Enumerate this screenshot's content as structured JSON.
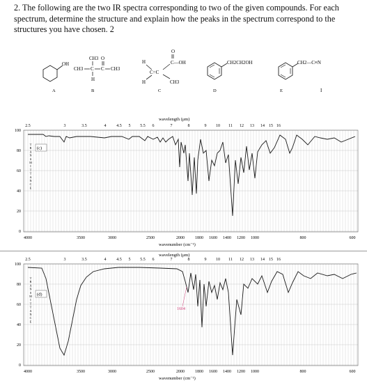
{
  "question": {
    "text": "2. The following are the two IR spectra corresponding to two of the given compounds. For each spectrum, determine the structure and explain how the peaks in the spectrum correspond to the structures you have chosen. 2"
  },
  "compounds": {
    "labels": [
      "A",
      "B",
      "C",
      "D",
      "E",
      "I"
    ],
    "A": {
      "oh": "OH"
    },
    "B": {
      "ch3_top": "CH3",
      "o_top": "O",
      "ch3_left": "CH3",
      "c_mid": "C",
      "c_right": "C",
      "ch3_right": "CH3",
      "h_bottom": "H"
    },
    "C": {
      "o_top": "O",
      "h_left_top": "H",
      "h_left_bottom": "H",
      "c_eq": "C=C",
      "cooh": "C—OH",
      "ch3": "CH3"
    },
    "D": {
      "sub": "CH2CH2OH"
    },
    "E": {
      "sub": "CH2—C≡N"
    }
  },
  "spectra": [
    {
      "id": "c",
      "box_label": "(c)",
      "top_axis_title": "wavelength (μm)",
      "top_ticks": [
        "2.5",
        "3",
        "3.5",
        "4",
        "4.5",
        "5",
        "5.5",
        "6",
        "7",
        "8",
        "9",
        "10",
        "11",
        "12",
        "13",
        "14",
        "15",
        "16"
      ],
      "y_ticks": [
        "100",
        "80",
        "60",
        "40",
        "20",
        "0"
      ],
      "y_label": "TRANSMITTANCE",
      "bottom_ticks": [
        "4000",
        "3500",
        "3000",
        "2500",
        "2000",
        "1800",
        "1600",
        "1400",
        "1200",
        "1000",
        "800",
        "600"
      ],
      "bottom_axis_title": "wavenumber (cm⁻¹)"
    },
    {
      "id": "d",
      "box_label": "(d)",
      "top_axis_title": "wavelength (μm)",
      "top_ticks": [
        "2.5",
        "3",
        "3.5",
        "4",
        "4.5",
        "5",
        "5.5",
        "6",
        "7",
        "8",
        "9",
        "10",
        "11",
        "12",
        "13",
        "14",
        "15",
        "16"
      ],
      "y_ticks": [
        "100",
        "80",
        "60",
        "40",
        "20",
        "0"
      ],
      "y_label": "TRANSMITTANCE",
      "bottom_ticks": [
        "4000",
        "3500",
        "3000",
        "2500",
        "2000",
        "1800",
        "1600",
        "1400",
        "1200",
        "1000",
        "800",
        "600"
      ],
      "bottom_axis_title": "wavenumber (cm⁻¹)",
      "annotation": "1604"
    }
  ],
  "colors": {
    "grid": "#c8c8c8",
    "trace": "#1a1a1a",
    "annotation": "#d0407a",
    "box_label": "#3a6fd8"
  }
}
